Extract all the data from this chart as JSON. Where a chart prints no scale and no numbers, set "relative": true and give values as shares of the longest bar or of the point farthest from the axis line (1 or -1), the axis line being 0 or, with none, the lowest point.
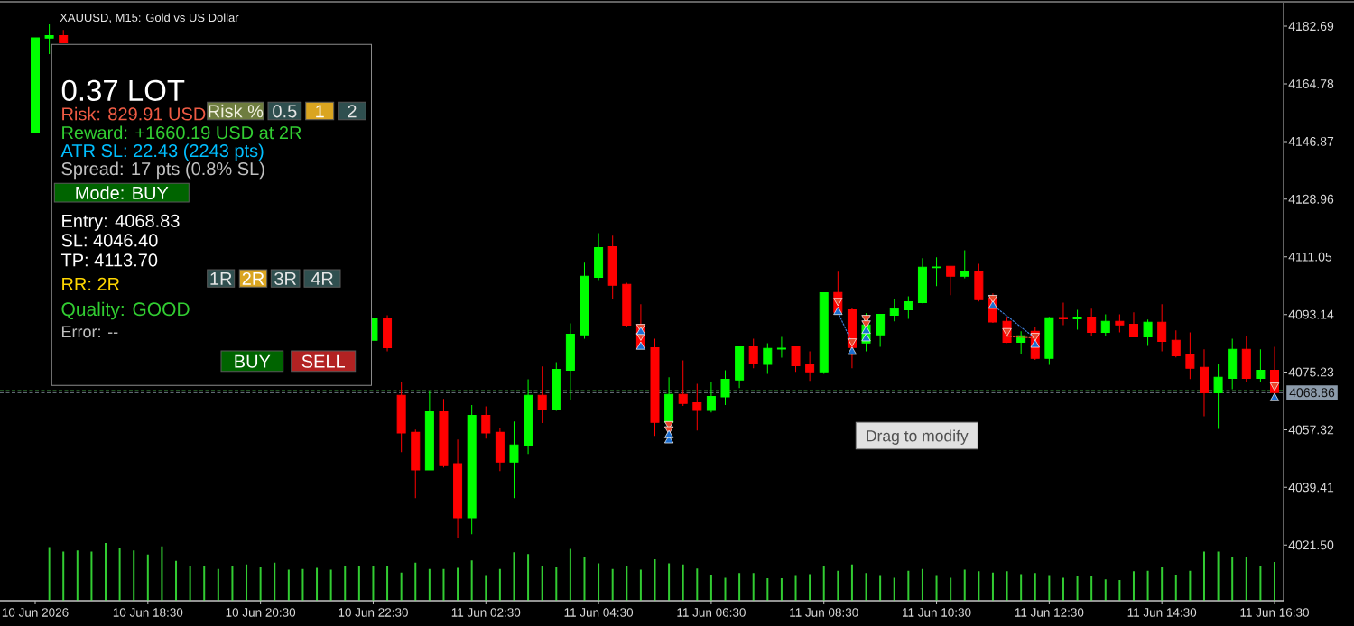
{
  "chart_data": [
    {
      "type": "candlestick",
      "title": "XAUUSD, M15: Gold vs US Dollar",
      "categories": [
        "10 Jun 2026",
        null,
        null,
        null,
        null,
        null,
        null,
        null,
        "10 Jun 18:30",
        null,
        null,
        null,
        null,
        null,
        null,
        null,
        "10 Jun 20:30",
        null,
        null,
        null,
        null,
        null,
        null,
        null,
        "10 Jun 22:30",
        null,
        null,
        null,
        null,
        null,
        null,
        null,
        "11 Jun 02:30",
        null,
        null,
        null,
        null,
        null,
        null,
        null,
        "11 Jun 04:30",
        null,
        null,
        null,
        null,
        null,
        null,
        null,
        "11 Jun 06:30",
        null,
        null,
        null,
        null,
        null,
        null,
        null,
        "11 Jun 08:30",
        null,
        null,
        null,
        null,
        null,
        null,
        null,
        "11 Jun 10:30",
        null,
        null,
        null,
        null,
        null,
        null,
        null,
        "11 Jun 12:30",
        null,
        null,
        null,
        null,
        null,
        null,
        null,
        "11 Jun 14:30",
        null,
        null,
        null,
        null,
        null,
        null,
        null,
        "11 Jun 16:30"
      ],
      "ohlc": [
        [
          4149.6,
          4179.1,
          4149.6,
          4179.1
        ],
        [
          4179.0,
          4183.3,
          4174.0,
          4179.8
        ],
        [
          4179.8,
          4181.5,
          4177.5,
          4177.5
        ],
        null,
        null,
        null,
        null,
        null,
        null,
        null,
        null,
        null,
        null,
        null,
        null,
        null,
        null,
        null,
        null,
        null,
        null,
        null,
        null,
        null,
        [
          4085.1,
          4091.8,
          4085.1,
          4091.8
        ],
        [
          4091.8,
          4092.9,
          4081.7,
          4082.8
        ],
        [
          4068.0,
          4072.2,
          4050.4,
          4056.3
        ],
        [
          4056.5,
          4057.4,
          4036.1,
          4044.8
        ],
        [
          4044.8,
          4069.4,
          4044.8,
          4062.9
        ],
        [
          4062.9,
          4066.9,
          4045.6,
          4046.2
        ],
        [
          4046.8,
          4054.3,
          4023.8,
          4030.0
        ],
        [
          4030.0,
          4065.0,
          4024.9,
          4061.8
        ],
        [
          4061.8,
          4064.6,
          4054.6,
          4056.3
        ],
        [
          4056.5,
          4057.7,
          4044.5,
          4047.3
        ],
        [
          4047.3,
          4059.9,
          4036.1,
          4052.6
        ],
        [
          4052.4,
          4073.0,
          4049.8,
          4068.0
        ],
        [
          4068.0,
          4077.0,
          4059.4,
          4063.6
        ],
        [
          4063.5,
          4078.3,
          4063.2,
          4076.1
        ],
        [
          4075.8,
          4090.4,
          4066.4,
          4087.0
        ],
        [
          4086.8,
          4109.2,
          4085.6,
          4105.0
        ],
        [
          4104.7,
          4118.4,
          4103.8,
          4113.9
        ],
        [
          4114.2,
          4117.6,
          4098.0,
          4102.2
        ],
        [
          4102.5,
          4103.0,
          4089.3,
          4089.8
        ],
        [
          4089.9,
          4096.3,
          4082.4,
          4082.7
        ],
        [
          4082.8,
          4085.6,
          4055.4,
          4059.6
        ],
        [
          4059.6,
          4073.6,
          4059.1,
          4068.3
        ],
        [
          4068.3,
          4078.9,
          4064.7,
          4065.5
        ],
        [
          4065.7,
          4071.6,
          4057.1,
          4063.3
        ],
        [
          4063.3,
          4072.2,
          4062.7,
          4067.7
        ],
        [
          4067.5,
          4075.8,
          4065.0,
          4073.0
        ],
        [
          4072.8,
          4083.1,
          4070.3,
          4083.1
        ],
        [
          4083.1,
          4085.6,
          4076.4,
          4077.8
        ],
        [
          4077.6,
          4084.2,
          4074.7,
          4082.6
        ],
        [
          4082.4,
          4086.2,
          4079.7,
          4082.7
        ],
        [
          4083.1,
          4083.1,
          4075.3,
          4077.2
        ],
        [
          4077.5,
          4081.7,
          4072.5,
          4075.3
        ],
        [
          4075.3,
          4099.9,
          4074.7,
          4099.9
        ],
        [
          4100.0,
          4106.7,
          4093.3,
          4093.8
        ],
        [
          4094.6,
          4095.2,
          4076.4,
          4082.9
        ],
        [
          4084.3,
          4093.5,
          4081.7,
          4089.9
        ],
        [
          4086.8,
          4093.2,
          4083.1,
          4093.2
        ],
        [
          4092.9,
          4098.0,
          4091.0,
          4094.9
        ],
        [
          4094.6,
          4098.8,
          4091.8,
          4097.1
        ],
        [
          4096.8,
          4110.6,
          4096.6,
          4107.8
        ],
        [
          4107.7,
          4110.9,
          4101.9,
          4107.9
        ],
        [
          4108.1,
          4108.1,
          4099.1,
          4105.0
        ],
        [
          4105.0,
          4113.1,
          4104.4,
          4106.6
        ],
        [
          4106.6,
          4108.9,
          4097.2,
          4097.7
        ],
        [
          4098.3,
          4099.7,
          4090.5,
          4090.8
        ],
        [
          4091.0,
          4092.4,
          4084.3,
          4084.5
        ],
        [
          4084.5,
          4087.9,
          4080.9,
          4086.5
        ],
        [
          4087.9,
          4089.3,
          4079.0,
          4079.5
        ],
        [
          4079.5,
          4092.4,
          4077.5,
          4092.1
        ],
        [
          4092.2,
          4096.8,
          4089.8,
          4091.8
        ],
        [
          4091.8,
          4094.6,
          4088.4,
          4092.3
        ],
        [
          4092.3,
          4094.9,
          4086.6,
          4087.6
        ],
        [
          4087.6,
          4093.2,
          4086.5,
          4091.0
        ],
        [
          4091.0,
          4093.2,
          4087.6,
          4089.9
        ],
        [
          4090.1,
          4093.8,
          4086.2,
          4086.2
        ],
        [
          4086.2,
          4091.6,
          4083.4,
          4090.7
        ],
        [
          4090.7,
          4096.3,
          4081.7,
          4084.8
        ],
        [
          4085.1,
          4088.2,
          4079.8,
          4080.3
        ],
        [
          4080.6,
          4087.6,
          4073.1,
          4076.4
        ],
        [
          4076.7,
          4082.3,
          4061.5,
          4068.8
        ],
        [
          4068.8,
          4077.8,
          4057.6,
          4073.6
        ],
        [
          4073.3,
          4085.6,
          4069.9,
          4082.3
        ],
        [
          4082.3,
          4086.5,
          4072.2,
          4073.3
        ],
        [
          4073.3,
          4082.3,
          4072.2,
          4075.8
        ],
        [
          4075.8,
          4083.1,
          4068.3,
          4068.9
        ]
      ],
      "colors": [
        "#00ff00",
        "#00ff00",
        "#ff0000",
        null,
        null,
        null,
        null,
        null,
        null,
        null,
        null,
        null,
        null,
        null,
        null,
        null,
        null,
        null,
        null,
        null,
        null,
        null,
        null,
        null,
        "#00ff00",
        "#ff0000",
        "#ff0000",
        "#ff0000",
        "#00ff00",
        "#ff0000",
        "#ff0000",
        "#00ff00",
        "#ff0000",
        "#ff0000",
        "#00ff00",
        "#00ff00",
        "#ff0000",
        "#00ff00",
        "#00ff00",
        "#00ff00",
        "#00ff00",
        "#ff0000",
        "#ff0000",
        "#ff0000",
        "#ff0000",
        "#00ff00",
        "#ff0000",
        "#ff0000",
        "#00ff00",
        "#00ff00",
        "#00ff00",
        "#ff0000",
        "#00ff00",
        "#00ff00",
        "#ff0000",
        "#ff0000",
        "#00ff00",
        "#ff0000",
        "#ff0000",
        "#00ff00",
        "#00ff00",
        "#00ff00",
        "#00ff00",
        "#00ff00",
        "#00ff00",
        "#ff0000",
        "#00ff00",
        "#ff0000",
        "#ff0000",
        "#ff0000",
        "#00ff00",
        "#ff0000",
        "#00ff00",
        "#ff0000",
        "#00ff00",
        "#ff0000",
        "#00ff00",
        "#ff0000",
        "#ff0000",
        "#00ff00",
        "#ff0000",
        "#ff0000",
        "#ff0000",
        "#ff0000",
        "#00ff00",
        "#00ff00",
        "#ff0000",
        "#00ff00",
        "#ff0000"
      ],
      "ylim": [
        4004.2,
        4190.0
      ],
      "yticks": [
        {
          "value": 4021.5,
          "label": "4021.50"
        },
        4039.41,
        4057.32,
        4075.23,
        4093.14,
        4111.05,
        4128.96,
        4146.87,
        4164.78,
        4182.69
      ],
      "ref_lines": [
        {
          "axis": "y",
          "value": 4069.5,
          "color": "#3fa03f",
          "line_style": "dashed"
        },
        {
          "axis": "y",
          "value": 4068.86,
          "label": "4068.86",
          "color": "#7d8a96",
          "line_style": "dashed"
        }
      ],
      "series": [
        {
          "type": "scatter",
          "color": "#e8472b",
          "marker": "triangle",
          "values": [
            null,
            null,
            null,
            null,
            null,
            null,
            null,
            null,
            null,
            null,
            null,
            null,
            null,
            null,
            null,
            null,
            null,
            null,
            null,
            null,
            null,
            null,
            null,
            null,
            null,
            null,
            null,
            null,
            null,
            null,
            null,
            null,
            null,
            null,
            null,
            null,
            null,
            null,
            null,
            null,
            null,
            null,
            null,
            4089.3,
            null,
            4059.1,
            null,
            null,
            null,
            null,
            null,
            null,
            null,
            null,
            null,
            null,
            null,
            4097.4,
            4084.8,
            4092.1,
            null,
            null,
            null,
            null,
            null,
            null,
            null,
            null,
            4098.3,
            4088.0,
            null,
            4086.5,
            null,
            null,
            null,
            null,
            null,
            null,
            null,
            null,
            null,
            null,
            null,
            null,
            null,
            null,
            null,
            null,
            4071.1
          ]
        },
        {
          "type": "scatter",
          "color": "#e8472b",
          "marker": "triangle",
          "values": [
            null,
            null,
            null,
            null,
            null,
            null,
            null,
            null,
            null,
            null,
            null,
            null,
            null,
            null,
            null,
            null,
            null,
            null,
            null,
            null,
            null,
            null,
            null,
            null,
            null,
            null,
            null,
            null,
            null,
            null,
            null,
            null,
            null,
            null,
            null,
            null,
            null,
            null,
            null,
            null,
            null,
            null,
            null,
            4086.6,
            null,
            4057.5,
            null,
            null,
            null,
            null,
            null,
            null,
            null,
            null,
            null,
            null,
            null,
            null,
            null,
            4090.4,
            null,
            null,
            null,
            null,
            null,
            null,
            null,
            null,
            null,
            null,
            null,
            null,
            null,
            null,
            null,
            null,
            null,
            null,
            null,
            null,
            null,
            null,
            null,
            null,
            null,
            null,
            null,
            null,
            null
          ]
        },
        {
          "type": "scatter",
          "color": "#1c6fd1",
          "marker": "triangle",
          "values": [
            null,
            null,
            null,
            null,
            null,
            null,
            null,
            null,
            null,
            null,
            null,
            null,
            null,
            null,
            null,
            null,
            null,
            null,
            null,
            null,
            null,
            null,
            null,
            null,
            null,
            null,
            null,
            null,
            null,
            null,
            null,
            null,
            null,
            null,
            null,
            null,
            null,
            null,
            null,
            null,
            null,
            null,
            null,
            4083.1,
            null,
            4054.0,
            null,
            null,
            null,
            null,
            null,
            null,
            null,
            null,
            null,
            null,
            null,
            4093.9,
            4081.5,
            4085.7,
            null,
            null,
            null,
            null,
            null,
            null,
            null,
            null,
            4095.8,
            null,
            null,
            4083.7,
            null,
            null,
            null,
            null,
            null,
            null,
            null,
            null,
            null,
            null,
            null,
            null,
            null,
            null,
            null,
            null,
            4067.1
          ]
        },
        {
          "type": "scatter",
          "color": "#1c6fd1",
          "marker": "triangle",
          "values": [
            null,
            null,
            null,
            null,
            null,
            null,
            null,
            null,
            null,
            null,
            null,
            null,
            null,
            null,
            null,
            null,
            null,
            null,
            null,
            null,
            null,
            null,
            null,
            null,
            null,
            null,
            null,
            null,
            null,
            null,
            null,
            null,
            null,
            null,
            null,
            null,
            null,
            null,
            null,
            null,
            null,
            null,
            null,
            4087.7,
            null,
            4055.6,
            null,
            null,
            null,
            null,
            null,
            null,
            null,
            null,
            null,
            null,
            null,
            null,
            null,
            4088.0,
            null,
            null,
            null,
            null,
            null,
            null,
            null,
            null,
            null,
            null,
            null,
            null,
            null,
            null,
            null,
            null,
            null,
            null,
            null,
            null,
            null,
            null,
            null,
            null,
            null,
            null,
            null,
            null,
            null
          ]
        },
        {
          "type": "line",
          "color": "#3f7fd9",
          "line_style": "dotted",
          "values": [
            null,
            null,
            null,
            null,
            null,
            null,
            null,
            null,
            null,
            null,
            null,
            null,
            null,
            null,
            null,
            null,
            null,
            null,
            null,
            null,
            null,
            null,
            null,
            null,
            null,
            null,
            null,
            null,
            null,
            null,
            null,
            null,
            null,
            null,
            null,
            null,
            null,
            null,
            null,
            null,
            null,
            null,
            null,
            null,
            null,
            null,
            null,
            null,
            null,
            null,
            null,
            null,
            null,
            null,
            null,
            null,
            null,
            4093.8,
            4084.3,
            null,
            null,
            null,
            null,
            null,
            null,
            null,
            null,
            null,
            null,
            null,
            null,
            null,
            null,
            null,
            null,
            null,
            null,
            null,
            null,
            null,
            null,
            null,
            null,
            null,
            null,
            null,
            null,
            null,
            null
          ]
        },
        {
          "type": "line",
          "color": "#3f7fd9",
          "line_style": "dotted",
          "values": [
            null,
            null,
            null,
            null,
            null,
            null,
            null,
            null,
            null,
            null,
            null,
            null,
            null,
            null,
            null,
            null,
            null,
            null,
            null,
            null,
            null,
            null,
            null,
            null,
            null,
            null,
            null,
            null,
            null,
            null,
            null,
            null,
            null,
            null,
            null,
            null,
            null,
            null,
            null,
            null,
            null,
            null,
            null,
            null,
            null,
            null,
            null,
            null,
            null,
            null,
            null,
            null,
            null,
            null,
            null,
            null,
            null,
            null,
            null,
            null,
            null,
            null,
            null,
            null,
            null,
            null,
            null,
            null,
            4096.0,
            4092.7,
            4089.2,
            4085.8,
            null,
            null,
            null,
            null,
            null,
            null,
            null,
            null,
            null,
            null,
            null,
            null,
            null,
            null,
            null,
            null,
            null
          ]
        },
        {
          "type": "line",
          "color": "#d9442b",
          "line_style": "dotted",
          "values": [
            null,
            null,
            null,
            null,
            null,
            null,
            null,
            null,
            null,
            null,
            null,
            null,
            null,
            null,
            null,
            null,
            null,
            null,
            null,
            null,
            null,
            null,
            null,
            null,
            null,
            null,
            null,
            null,
            null,
            null,
            null,
            null,
            null,
            null,
            null,
            null,
            null,
            null,
            null,
            null,
            null,
            null,
            null,
            null,
            null,
            null,
            null,
            null,
            null,
            null,
            null,
            null,
            null,
            null,
            null,
            null,
            null,
            null,
            null,
            null,
            null,
            null,
            null,
            null,
            null,
            null,
            null,
            null,
            null,
            4086.3,
            4086.1,
            4085.8,
            null,
            null,
            null,
            null,
            null,
            null,
            null,
            null,
            null,
            null,
            null,
            null,
            null,
            null,
            null,
            null,
            null
          ]
        }
      ],
      "annotations": [
        "0.37 LOT",
        "Risk: 829.91 USD",
        "Risk %",
        "0.5",
        "1",
        "2",
        "Reward: +1660.19 USD at 2R",
        "ATR SL: 22.43 (2243 pts)",
        "Spread: 17 pts (0.8% SL)",
        "Mode: BUY",
        "Entry: 4068.83",
        "SL: 4046.40",
        "TP: 4113.70",
        "1R",
        "2R",
        "3R",
        "4R",
        "RR: 2R",
        "Quality: GOOD",
        "Error: --",
        "BUY",
        "SELL",
        "Drag to modify"
      ]
    },
    {
      "type": "bar",
      "relative": true,
      "color": "#32cd32",
      "categories": [
        null,
        null,
        null,
        null,
        null,
        null,
        null,
        null,
        null,
        null,
        null,
        null,
        null,
        null,
        null,
        null,
        null,
        null,
        null,
        null,
        null,
        null,
        null,
        null,
        null,
        null,
        null,
        null,
        null,
        null,
        null,
        null,
        null,
        null,
        null,
        null,
        null,
        null,
        null,
        null,
        null,
        null,
        null,
        null,
        null,
        null,
        null,
        null,
        null,
        null,
        null,
        null,
        null,
        null,
        null,
        null,
        null,
        null,
        null,
        null,
        null,
        null,
        null,
        null,
        null,
        null,
        null,
        null,
        null,
        null,
        null,
        null,
        null,
        null,
        null,
        null,
        null,
        null,
        null,
        null,
        null,
        null,
        null,
        null,
        null,
        null,
        null,
        null,
        null
      ],
      "values": [
        null,
        0.93,
        0.85,
        0.87,
        0.85,
        1,
        0.91,
        0.87,
        0.8,
        0.94,
        0.69,
        0.6,
        0.61,
        0.55,
        0.61,
        0.63,
        0.58,
        0.66,
        0.54,
        0.55,
        0.57,
        0.54,
        0.61,
        0.6,
        0.61,
        0.6,
        0.49,
        0.66,
        0.55,
        0.55,
        0.57,
        0.7,
        0.43,
        0.55,
        0.84,
        0.81,
        0.6,
        0.58,
        0.9,
        0.75,
        0.65,
        0.55,
        0.6,
        0.54,
        0.72,
        0.65,
        0.63,
        0.56,
        0.45,
        0.4,
        0.48,
        0.48,
        0.39,
        0.39,
        0.43,
        0.46,
        0.6,
        0.52,
        0.63,
        0.48,
        0.43,
        0.4,
        0.52,
        0.55,
        0.43,
        0.4,
        0.54,
        0.51,
        0.49,
        0.51,
        0.46,
        0.48,
        0.43,
        0.4,
        0.42,
        0.42,
        0.37,
        0.36,
        0.51,
        0.52,
        0.58,
        0.45,
        0.52,
        0.85,
        0.85,
        0.76,
        0.76,
        0.6,
        0.67
      ]
    }
  ]
}
